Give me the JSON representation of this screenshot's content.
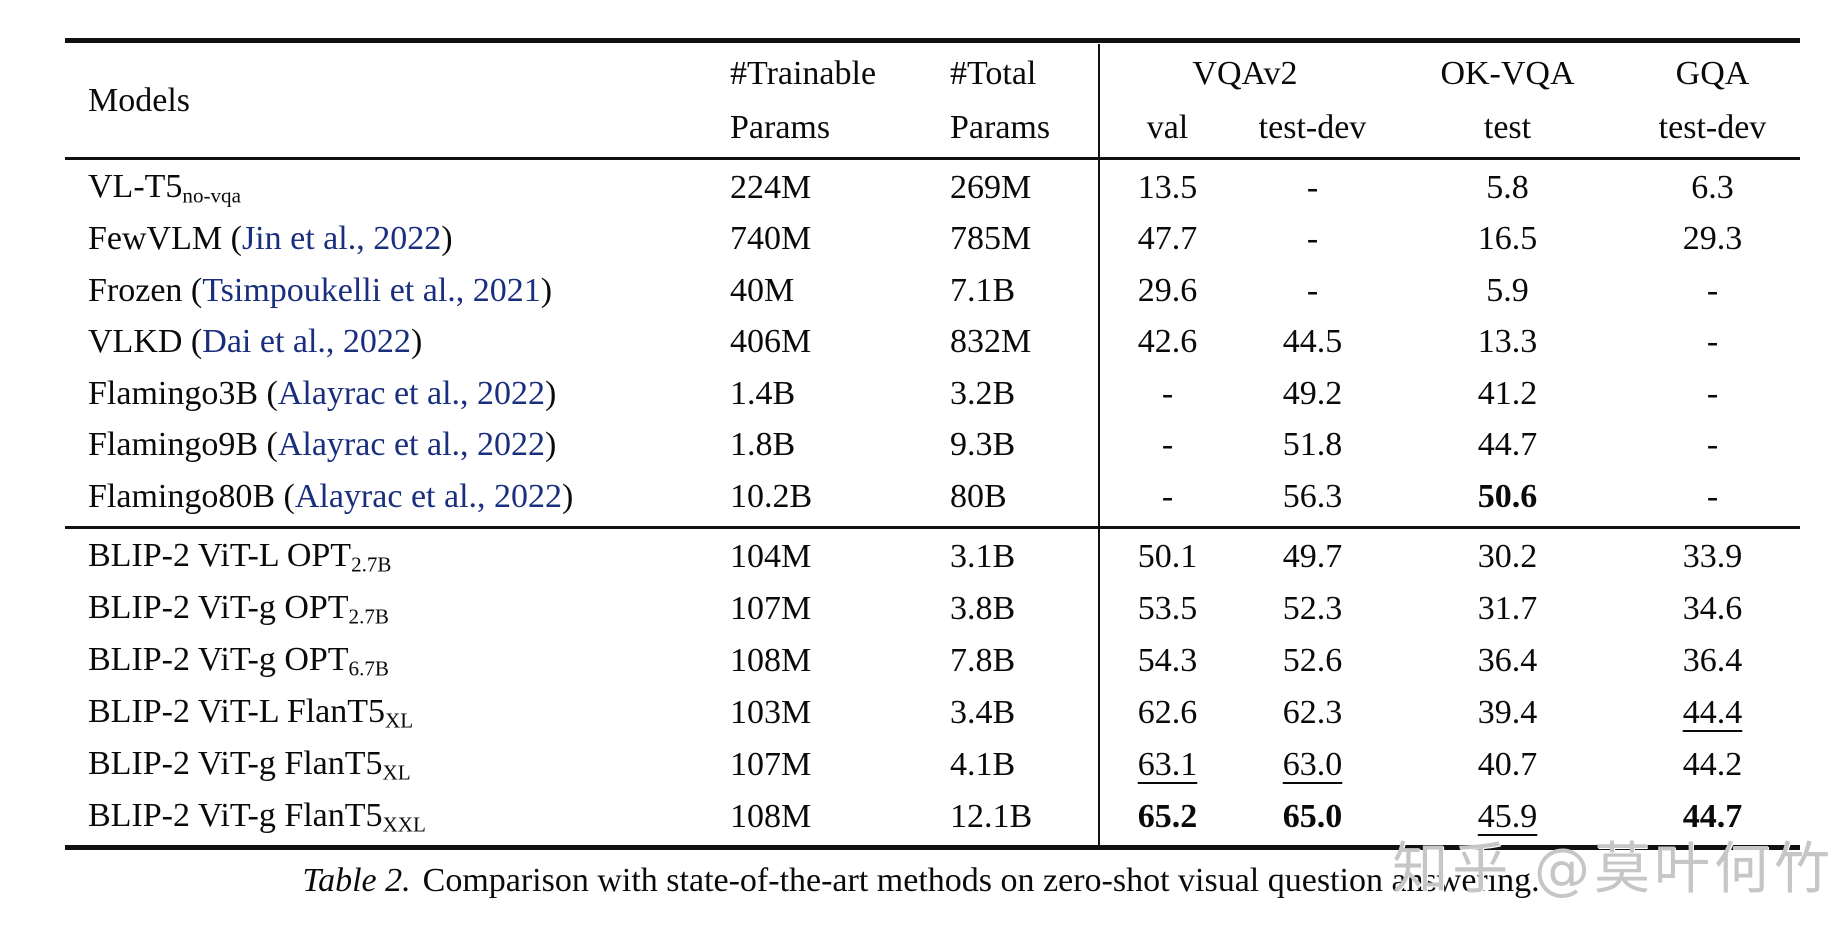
{
  "table": {
    "header": {
      "models": "Models",
      "trainable_line1": "#Trainable",
      "trainable_line2": "Params",
      "total_line1": "#Total",
      "total_line2": "Params",
      "vqav2": "VQAv2",
      "vqav2_val": "val",
      "vqav2_testdev": "test-dev",
      "okvqa": "OK-VQA",
      "okvqa_test": "test",
      "gqa": "GQA",
      "gqa_testdev": "test-dev"
    },
    "groups": [
      {
        "rows": [
          {
            "model": [
              {
                "t": "VL-T5"
              },
              {
                "t": "no-vqa",
                "style": "sub"
              }
            ],
            "cells": {
              "trainable": {
                "v": "224M"
              },
              "total": {
                "v": "269M"
              },
              "val": {
                "v": "13.5"
              },
              "testdev": {
                "v": "-"
              },
              "okvqa": {
                "v": "5.8"
              },
              "gqa": {
                "v": "6.3"
              }
            }
          },
          {
            "model": [
              {
                "t": "FewVLM ("
              },
              {
                "t": "Jin et al., 2022",
                "style": "cite"
              },
              {
                "t": ")"
              }
            ],
            "cells": {
              "trainable": {
                "v": "740M"
              },
              "total": {
                "v": "785M"
              },
              "val": {
                "v": "47.7"
              },
              "testdev": {
                "v": "-"
              },
              "okvqa": {
                "v": "16.5"
              },
              "gqa": {
                "v": "29.3"
              }
            }
          },
          {
            "model": [
              {
                "t": "Frozen ("
              },
              {
                "t": "Tsimpoukelli et al., 2021",
                "style": "cite"
              },
              {
                "t": ")"
              }
            ],
            "cells": {
              "trainable": {
                "v": "40M"
              },
              "total": {
                "v": "7.1B"
              },
              "val": {
                "v": "29.6"
              },
              "testdev": {
                "v": "-"
              },
              "okvqa": {
                "v": "5.9"
              },
              "gqa": {
                "v": "-"
              }
            }
          },
          {
            "model": [
              {
                "t": "VLKD ("
              },
              {
                "t": "Dai et al., 2022",
                "style": "cite"
              },
              {
                "t": ")"
              }
            ],
            "cells": {
              "trainable": {
                "v": "406M"
              },
              "total": {
                "v": "832M"
              },
              "val": {
                "v": "42.6"
              },
              "testdev": {
                "v": "44.5"
              },
              "okvqa": {
                "v": "13.3"
              },
              "gqa": {
                "v": "-"
              }
            }
          },
          {
            "model": [
              {
                "t": "Flamingo3B ("
              },
              {
                "t": "Alayrac et al., 2022",
                "style": "cite"
              },
              {
                "t": ")"
              }
            ],
            "cells": {
              "trainable": {
                "v": "1.4B"
              },
              "total": {
                "v": "3.2B"
              },
              "val": {
                "v": "-"
              },
              "testdev": {
                "v": "49.2"
              },
              "okvqa": {
                "v": "41.2"
              },
              "gqa": {
                "v": "-"
              }
            }
          },
          {
            "model": [
              {
                "t": "Flamingo9B ("
              },
              {
                "t": "Alayrac et al., 2022",
                "style": "cite"
              },
              {
                "t": ")"
              }
            ],
            "cells": {
              "trainable": {
                "v": "1.8B"
              },
              "total": {
                "v": "9.3B"
              },
              "val": {
                "v": "-"
              },
              "testdev": {
                "v": "51.8"
              },
              "okvqa": {
                "v": "44.7"
              },
              "gqa": {
                "v": "-"
              }
            }
          },
          {
            "model": [
              {
                "t": "Flamingo80B ("
              },
              {
                "t": "Alayrac et al., 2022",
                "style": "cite"
              },
              {
                "t": ")"
              }
            ],
            "cells": {
              "trainable": {
                "v": "10.2B"
              },
              "total": {
                "v": "80B"
              },
              "val": {
                "v": "-"
              },
              "testdev": {
                "v": "56.3"
              },
              "okvqa": {
                "v": "50.6",
                "b": true
              },
              "gqa": {
                "v": "-"
              }
            }
          }
        ]
      },
      {
        "rows": [
          {
            "model": [
              {
                "t": "BLIP-2 ViT-L OPT"
              },
              {
                "t": "2.7B",
                "style": "sub"
              }
            ],
            "cells": {
              "trainable": {
                "v": "104M"
              },
              "total": {
                "v": "3.1B"
              },
              "val": {
                "v": "50.1"
              },
              "testdev": {
                "v": "49.7"
              },
              "okvqa": {
                "v": "30.2"
              },
              "gqa": {
                "v": "33.9"
              }
            }
          },
          {
            "model": [
              {
                "t": "BLIP-2 ViT-g OPT"
              },
              {
                "t": "2.7B",
                "style": "sub"
              }
            ],
            "cells": {
              "trainable": {
                "v": "107M"
              },
              "total": {
                "v": "3.8B"
              },
              "val": {
                "v": "53.5"
              },
              "testdev": {
                "v": "52.3"
              },
              "okvqa": {
                "v": "31.7"
              },
              "gqa": {
                "v": "34.6"
              }
            }
          },
          {
            "model": [
              {
                "t": "BLIP-2 ViT-g OPT"
              },
              {
                "t": "6.7B",
                "style": "sub"
              }
            ],
            "cells": {
              "trainable": {
                "v": "108M"
              },
              "total": {
                "v": "7.8B"
              },
              "val": {
                "v": "54.3"
              },
              "testdev": {
                "v": "52.6"
              },
              "okvqa": {
                "v": "36.4"
              },
              "gqa": {
                "v": "36.4"
              }
            }
          },
          {
            "model": [
              {
                "t": "BLIP-2 ViT-L FlanT5"
              },
              {
                "t": "XL",
                "style": "sub"
              }
            ],
            "cells": {
              "trainable": {
                "v": "103M"
              },
              "total": {
                "v": "3.4B"
              },
              "val": {
                "v": "62.6"
              },
              "testdev": {
                "v": "62.3"
              },
              "okvqa": {
                "v": "39.4"
              },
              "gqa": {
                "v": "44.4",
                "u": true
              }
            }
          },
          {
            "model": [
              {
                "t": "BLIP-2 ViT-g FlanT5"
              },
              {
                "t": "XL",
                "style": "sub"
              }
            ],
            "cells": {
              "trainable": {
                "v": "107M"
              },
              "total": {
                "v": "4.1B"
              },
              "val": {
                "v": "63.1",
                "u": true
              },
              "testdev": {
                "v": "63.0",
                "u": true
              },
              "okvqa": {
                "v": "40.7"
              },
              "gqa": {
                "v": "44.2"
              }
            }
          },
          {
            "model": [
              {
                "t": "BLIP-2 ViT-g FlanT5"
              },
              {
                "t": "XXL",
                "style": "sub"
              }
            ],
            "cells": {
              "trainable": {
                "v": "108M"
              },
              "total": {
                "v": "12.1B"
              },
              "val": {
                "v": "65.2",
                "b": true
              },
              "testdev": {
                "v": "65.0",
                "b": true
              },
              "okvqa": {
                "v": "45.9",
                "u": true
              },
              "gqa": {
                "v": "44.7",
                "b": true
              }
            }
          }
        ]
      }
    ]
  },
  "caption": {
    "label": "Table 2.",
    "text": "Comparison with state-of-the-art methods on zero-shot visual question answering."
  },
  "watermark": "知乎 @莫叶何竹",
  "colors": {
    "citation_blue": "#1a2e7e",
    "rule_black": "#111111",
    "watermark_gray": "#c6c6c6"
  }
}
